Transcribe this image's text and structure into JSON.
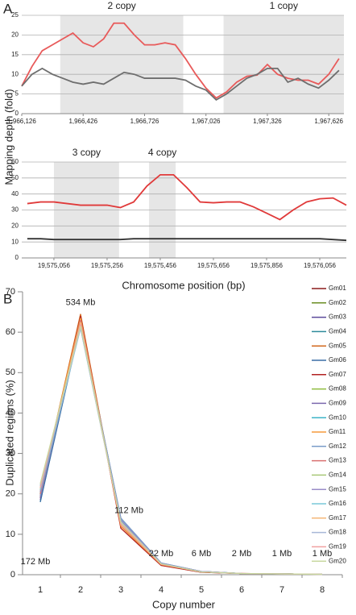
{
  "panel_labels": [
    "A",
    "B"
  ],
  "chart_data": [
    {
      "type": "line",
      "ylabel": "Mapping depth (fold)",
      "x": [
        1966126,
        1966176,
        1966226,
        1966276,
        1966326,
        1966376,
        1966426,
        1966476,
        1966526,
        1966576,
        1966626,
        1966676,
        1966726,
        1966776,
        1966826,
        1966876,
        1966926,
        1966976,
        1967026,
        1967076,
        1967126,
        1967176,
        1967226,
        1967276,
        1967326,
        1967376,
        1967426,
        1967476,
        1967526,
        1967576,
        1967626,
        1967676
      ],
      "series": [
        {
          "color": "#e85a5a",
          "values": [
            7,
            12,
            16,
            17.5,
            19,
            20.5,
            18,
            17,
            19,
            23,
            23,
            20,
            17.5,
            17.5,
            18,
            17.5,
            14,
            10,
            6.5,
            4,
            5.5,
            8,
            9.5,
            9.8,
            12.5,
            10,
            9,
            8.5,
            8.5,
            7.5,
            10,
            14
          ]
        },
        {
          "color": "#6e6e6e",
          "values": [
            7,
            10,
            11.5,
            10,
            9,
            8,
            7.5,
            8,
            7.5,
            9,
            10.5,
            10,
            9,
            9,
            9,
            9,
            8.5,
            7,
            6,
            3.5,
            5,
            7,
            9,
            10,
            11.5,
            11.5,
            8,
            9,
            7.5,
            6.5,
            8.5,
            11
          ]
        }
      ],
      "regions": [
        {
          "label": "2 copy",
          "x": [
            1966314,
            1966915
          ]
        },
        {
          "label": "1 copy",
          "x": [
            1967112,
            1967700
          ]
        }
      ],
      "xlim": [
        1966126,
        1967700
      ],
      "ylim": [
        0,
        25
      ],
      "yticks": [
        0,
        5,
        10,
        15,
        20,
        25
      ],
      "xticks": [
        {
          "value": 1966126,
          "label": "1,966,126"
        },
        {
          "value": 1966426,
          "label": "1,966,426"
        },
        {
          "value": 1966726,
          "label": "1,966,726"
        },
        {
          "value": 1967026,
          "label": "1,967,026"
        },
        {
          "value": 1967326,
          "label": "1,967,326"
        },
        {
          "value": 1967626,
          "label": "1,967,626"
        }
      ],
      "grid": true
    },
    {
      "type": "line",
      "xlabel": "Chromosome position (bp)",
      "x": [
        19574956,
        19575006,
        19575056,
        19575106,
        19575156,
        19575206,
        19575256,
        19575306,
        19575356,
        19575406,
        19575456,
        19575506,
        19575556,
        19575606,
        19575656,
        19575706,
        19575756,
        19575806,
        19575856,
        19575906,
        19575956,
        19576006,
        19576056,
        19576106,
        19576156
      ],
      "series": [
        {
          "color": "#e03a3a",
          "values": [
            34,
            35,
            35,
            34,
            33,
            33,
            33,
            31.5,
            35,
            45,
            52,
            52,
            44,
            35,
            34.5,
            35,
            35,
            32,
            28,
            24,
            30,
            35,
            37,
            37.5,
            33
          ]
        },
        {
          "color": "#333333",
          "values": [
            12,
            12,
            11.5,
            11.5,
            11.5,
            11.5,
            11.5,
            11.5,
            12,
            12,
            12,
            12,
            12,
            12,
            12,
            12,
            12,
            12,
            12,
            12,
            12,
            12,
            12,
            11.5,
            11
          ]
        }
      ],
      "regions": [
        {
          "label": "3 copy",
          "x": [
            19575056,
            19575301
          ]
        },
        {
          "label": "4 copy",
          "x": [
            19575414,
            19575514
          ]
        }
      ],
      "xlim": [
        19574935,
        19576156
      ],
      "ylim": [
        0,
        60
      ],
      "yticks": [
        0,
        10,
        20,
        30,
        40,
        50,
        60
      ],
      "xticks": [
        {
          "value": 19575056,
          "label": "19,575,056"
        },
        {
          "value": 19575256,
          "label": "19,575,256"
        },
        {
          "value": 19575456,
          "label": "19,575,456"
        },
        {
          "value": 19575656,
          "label": "19,575,656"
        },
        {
          "value": 19575856,
          "label": "19,575,856"
        },
        {
          "value": 19576056,
          "label": "19,576,056"
        }
      ],
      "grid": true
    },
    {
      "type": "line",
      "xlabel": "Copy number",
      "ylabel": "Duplicated regions (%)",
      "categories": [
        "1",
        "2",
        "3",
        "4",
        "5",
        "6",
        "7",
        "8"
      ],
      "point_labels": [
        "172 Mb",
        "534 Mb",
        "112 Mb",
        "22 Mb",
        "6 Mb",
        "2 Mb",
        "1 Mb",
        "1 Mb"
      ],
      "ylim": [
        0,
        70
      ],
      "yticks": [
        0,
        10,
        20,
        30,
        40,
        50,
        60,
        70
      ],
      "grid": false,
      "legend": "right",
      "series": [
        {
          "name": "Gm01",
          "color": "#8b1a1a",
          "values": [
            19,
            64,
            12,
            2.5,
            0.7,
            0.3,
            0.2,
            0.1
          ]
        },
        {
          "name": "Gm02",
          "color": "#6b8e23",
          "values": [
            20,
            63.5,
            12.5,
            2.6,
            0.7,
            0.3,
            0.2,
            0.1
          ]
        },
        {
          "name": "Gm03",
          "color": "#5b4a9b",
          "values": [
            18.5,
            63,
            13,
            2.7,
            0.7,
            0.3,
            0.2,
            0.1
          ]
        },
        {
          "name": "Gm04",
          "color": "#2e8b9b",
          "values": [
            18,
            62.5,
            13.5,
            2.8,
            0.8,
            0.3,
            0.2,
            0.1
          ]
        },
        {
          "name": "Gm05",
          "color": "#d2691e",
          "values": [
            20.5,
            64.5,
            12,
            2.4,
            0.6,
            0.3,
            0.2,
            0.1
          ]
        },
        {
          "name": "Gm06",
          "color": "#3a6ea5",
          "values": [
            18,
            62,
            14,
            2.9,
            0.8,
            0.3,
            0.2,
            0.1
          ]
        },
        {
          "name": "Gm07",
          "color": "#b22222",
          "values": [
            19.5,
            64,
            11.5,
            2.3,
            0.6,
            0.3,
            0.2,
            0.1
          ]
        },
        {
          "name": "Gm08",
          "color": "#8fbc3f",
          "values": [
            21,
            63,
            12.5,
            2.6,
            0.7,
            0.3,
            0.2,
            0.1
          ]
        },
        {
          "name": "Gm09",
          "color": "#7b68ae",
          "values": [
            19,
            62.5,
            13,
            2.7,
            0.7,
            0.3,
            0.2,
            0.1
          ]
        },
        {
          "name": "Gm10",
          "color": "#3cb4c8",
          "values": [
            20,
            62,
            13.5,
            2.8,
            0.7,
            0.3,
            0.2,
            0.1
          ]
        },
        {
          "name": "Gm11",
          "color": "#f59a3c",
          "values": [
            21,
            63.5,
            12,
            2.5,
            0.7,
            0.3,
            0.2,
            0.1
          ]
        },
        {
          "name": "Gm12",
          "color": "#7a9cc8",
          "values": [
            19.5,
            62,
            14,
            2.9,
            0.8,
            0.3,
            0.2,
            0.1
          ]
        },
        {
          "name": "Gm13",
          "color": "#d97070",
          "values": [
            20,
            63,
            12.5,
            2.6,
            0.7,
            0.3,
            0.2,
            0.1
          ]
        },
        {
          "name": "Gm14",
          "color": "#a8c878",
          "values": [
            22,
            62,
            13,
            2.7,
            0.7,
            0.3,
            0.2,
            0.1
          ]
        },
        {
          "name": "Gm15",
          "color": "#9a8cc8",
          "values": [
            20.5,
            61.5,
            13.5,
            2.8,
            0.8,
            0.3,
            0.2,
            0.1
          ]
        },
        {
          "name": "Gm16",
          "color": "#78c8d8",
          "values": [
            21,
            61,
            13,
            2.7,
            0.7,
            0.3,
            0.2,
            0.1
          ]
        },
        {
          "name": "Gm17",
          "color": "#f5b878",
          "values": [
            21.5,
            62.5,
            12.5,
            2.6,
            0.7,
            0.3,
            0.2,
            0.1
          ]
        },
        {
          "name": "Gm18",
          "color": "#a8b8d8",
          "values": [
            22,
            61,
            13,
            2.7,
            0.7,
            0.3,
            0.2,
            0.1
          ]
        },
        {
          "name": "Gm19",
          "color": "#f0a0a0",
          "values": [
            21.5,
            62,
            12.5,
            2.6,
            0.7,
            0.3,
            0.2,
            0.1
          ]
        },
        {
          "name": "Gm20",
          "color": "#c8d8a0",
          "values": [
            22.5,
            61.5,
            13,
            2.7,
            0.7,
            0.3,
            0.2,
            0.1
          ]
        }
      ]
    }
  ]
}
